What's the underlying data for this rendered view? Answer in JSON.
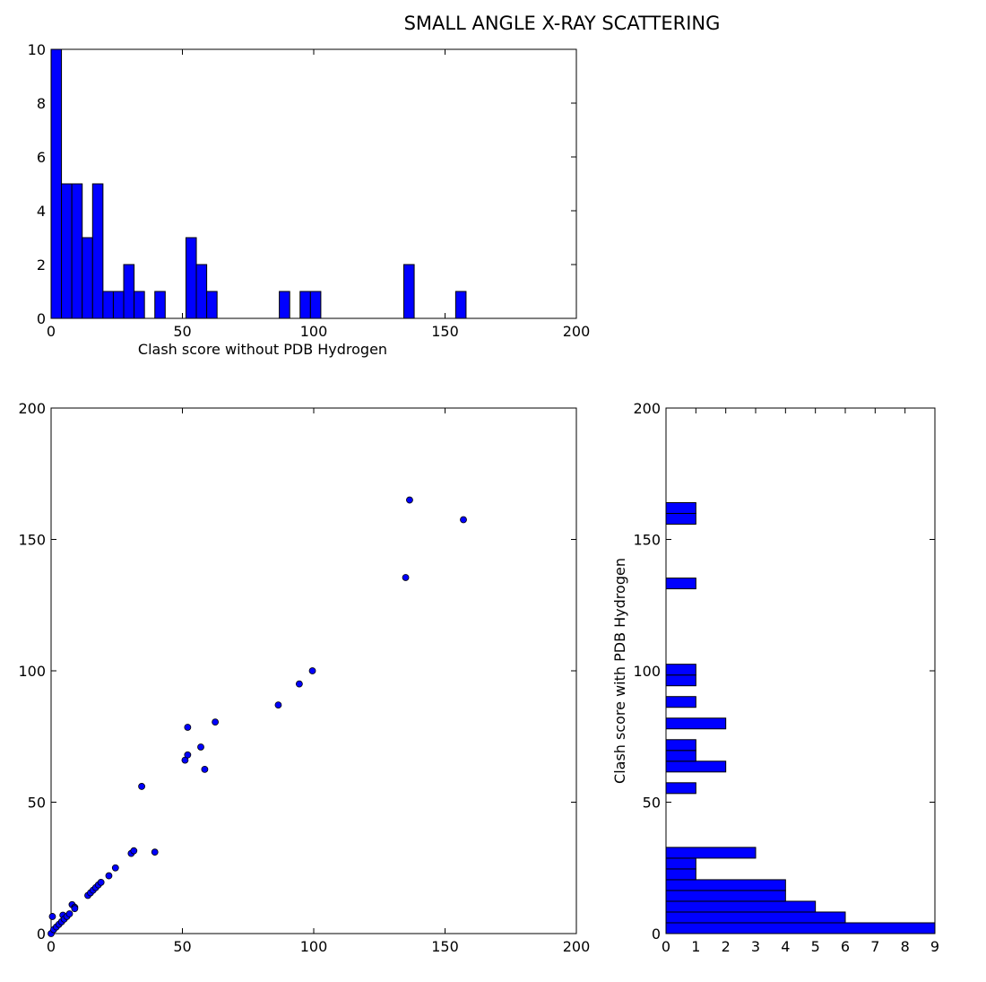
{
  "figure": {
    "title": "SMALL ANGLE X-RAY SCATTERING"
  },
  "chart_data": [
    {
      "id": "top-histogram",
      "type": "bar",
      "title": "",
      "xlabel": "Clash score without PDB Hydrogen",
      "ylabel": "",
      "xlim": [
        0,
        200
      ],
      "ylim": [
        0,
        10
      ],
      "xticks": [
        "0",
        "50",
        "100",
        "150",
        "200"
      ],
      "yticks": [
        "0",
        "2",
        "4",
        "6",
        "8",
        "10"
      ],
      "bin_width": 3.95,
      "bars": [
        {
          "x": 0.0,
          "count": 10
        },
        {
          "x": 3.95,
          "count": 5
        },
        {
          "x": 7.9,
          "count": 5
        },
        {
          "x": 11.85,
          "count": 3
        },
        {
          "x": 15.8,
          "count": 5
        },
        {
          "x": 19.75,
          "count": 1
        },
        {
          "x": 23.7,
          "count": 1
        },
        {
          "x": 27.65,
          "count": 2
        },
        {
          "x": 31.6,
          "count": 1
        },
        {
          "x": 39.5,
          "count": 1
        },
        {
          "x": 51.35,
          "count": 3
        },
        {
          "x": 55.3,
          "count": 2
        },
        {
          "x": 59.25,
          "count": 1
        },
        {
          "x": 86.9,
          "count": 1
        },
        {
          "x": 94.8,
          "count": 1
        },
        {
          "x": 98.75,
          "count": 1
        },
        {
          "x": 134.3,
          "count": 2
        },
        {
          "x": 154.05,
          "count": 1
        }
      ],
      "color": "#0000ff",
      "grid": false
    },
    {
      "id": "scatter",
      "type": "scatter",
      "title": "",
      "xlabel": "",
      "ylabel": "",
      "xlim": [
        0,
        200
      ],
      "ylim": [
        0,
        200
      ],
      "xticks": [
        "0",
        "50",
        "100",
        "150",
        "200"
      ],
      "yticks": [
        "0",
        "50",
        "100",
        "150",
        "200"
      ],
      "points": [
        [
          0,
          0
        ],
        [
          0.5,
          6.5
        ],
        [
          1,
          1.5
        ],
        [
          2,
          2.5
        ],
        [
          3,
          3.5
        ],
        [
          4,
          4.5
        ],
        [
          4.5,
          7
        ],
        [
          5,
          5.5
        ],
        [
          6,
          6.5
        ],
        [
          7,
          7.5
        ],
        [
          8,
          11
        ],
        [
          9,
          10
        ],
        [
          9,
          9.5
        ],
        [
          14,
          14.5
        ],
        [
          15,
          15.5
        ],
        [
          16,
          16.5
        ],
        [
          17,
          17.5
        ],
        [
          18,
          18.5
        ],
        [
          19,
          19.5
        ],
        [
          22,
          22
        ],
        [
          24.5,
          25
        ],
        [
          30.5,
          30.5
        ],
        [
          31.5,
          31.5
        ],
        [
          34.5,
          56
        ],
        [
          39.5,
          31
        ],
        [
          51,
          66
        ],
        [
          52,
          68
        ],
        [
          52,
          78.5
        ],
        [
          57,
          71
        ],
        [
          58.5,
          62.5
        ],
        [
          62.5,
          80.5
        ],
        [
          86.5,
          87
        ],
        [
          94.5,
          95
        ],
        [
          99.5,
          100
        ],
        [
          135,
          135.5
        ],
        [
          136.5,
          165
        ],
        [
          157,
          157.5
        ]
      ],
      "color": "#0000ff",
      "grid": false
    },
    {
      "id": "side-histogram",
      "type": "bar",
      "orientation": "horizontal",
      "title": "",
      "xlabel": "",
      "ylabel": "Clash score with PDB Hydrogen",
      "xlim": [
        0,
        9
      ],
      "ylim": [
        0,
        200
      ],
      "xticks": [
        "0",
        "1",
        "2",
        "3",
        "4",
        "5",
        "6",
        "7",
        "8",
        "9"
      ],
      "yticks": [
        "0",
        "50",
        "100",
        "150",
        "200"
      ],
      "bin_width": 4.1,
      "bars": [
        {
          "y": 0.0,
          "count": 9
        },
        {
          "y": 4.1,
          "count": 6
        },
        {
          "y": 8.2,
          "count": 5
        },
        {
          "y": 12.3,
          "count": 4
        },
        {
          "y": 16.4,
          "count": 4
        },
        {
          "y": 20.5,
          "count": 1
        },
        {
          "y": 24.6,
          "count": 1
        },
        {
          "y": 28.7,
          "count": 3
        },
        {
          "y": 53.3,
          "count": 1
        },
        {
          "y": 61.5,
          "count": 2
        },
        {
          "y": 65.6,
          "count": 1
        },
        {
          "y": 69.7,
          "count": 1
        },
        {
          "y": 77.9,
          "count": 2
        },
        {
          "y": 86.1,
          "count": 1
        },
        {
          "y": 94.3,
          "count": 1
        },
        {
          "y": 98.4,
          "count": 1
        },
        {
          "y": 131.2,
          "count": 1
        },
        {
          "y": 155.8,
          "count": 1
        },
        {
          "y": 159.9,
          "count": 1
        }
      ],
      "color": "#0000ff",
      "grid": false
    }
  ]
}
